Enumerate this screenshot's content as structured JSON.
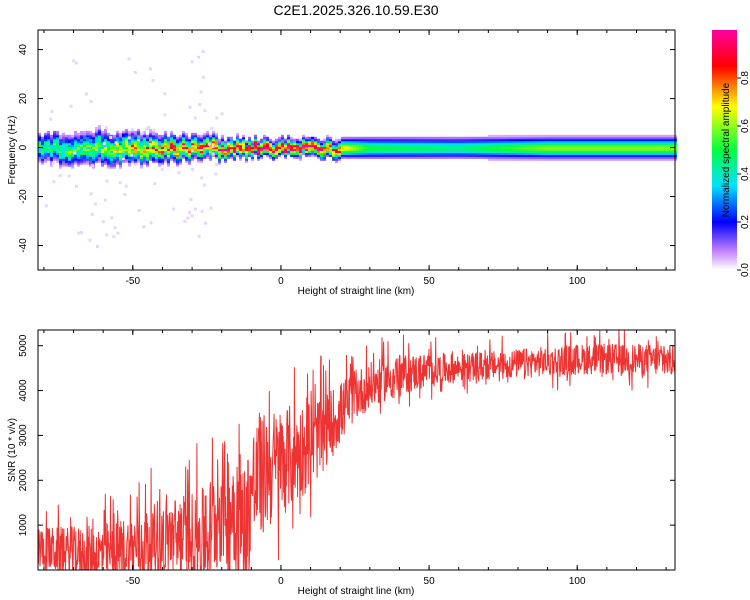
{
  "title": "C2E1.2025.326.10.59.E30",
  "chart_data": [
    {
      "type": "heatmap",
      "xlabel": "Height of straight line (km)",
      "ylabel": "Frequency (Hz)",
      "xlim": [
        -82,
        133
      ],
      "ylim": [
        -50,
        48
      ],
      "xticks": [
        -50,
        0,
        50,
        100
      ],
      "yticks": [
        -40,
        -20,
        0,
        20,
        40
      ],
      "xtick_labels": [
        "-50",
        "0",
        "50",
        "100"
      ],
      "ytick_labels": [
        "-40",
        "-20",
        "0",
        "20",
        "40"
      ],
      "colorbar": {
        "label": "Normalized spectral amplitude",
        "range": [
          0,
          1
        ],
        "ticks": [
          0.0,
          0.2,
          0.4,
          0.6,
          0.8
        ],
        "tick_labels": [
          "0.0",
          "0.2",
          "0.4",
          "0.6",
          "0.8"
        ],
        "colors": [
          "#ffffff",
          "#c080ff",
          "#0000ff",
          "#00e0ff",
          "#00ff40",
          "#ffff00",
          "#ff0000",
          "#ff00a0"
        ]
      },
      "band": {
        "center_hz": 0,
        "description": "Spectral energy concentrated near 0 Hz across all heights",
        "profile": [
          {
            "x": -82,
            "half_width_hz": 5,
            "peak": 0.45
          },
          {
            "x": -60,
            "half_width_hz": 6,
            "peak": 0.55
          },
          {
            "x": -45,
            "half_width_hz": 5,
            "peak": 0.75
          },
          {
            "x": -25,
            "half_width_hz": 4,
            "peak": 0.8
          },
          {
            "x": -10,
            "half_width_hz": 3,
            "peak": 0.95
          },
          {
            "x": 0,
            "half_width_hz": 3,
            "peak": 0.95
          },
          {
            "x": 10,
            "half_width_hz": 3,
            "peak": 0.95
          },
          {
            "x": 30,
            "half_width_hz": 4,
            "peak": 0.5
          },
          {
            "x": 60,
            "half_width_hz": 4,
            "peak": 0.45
          },
          {
            "x": 90,
            "half_width_hz": 4,
            "peak": 0.6
          },
          {
            "x": 133,
            "half_width_hz": 4,
            "peak": 0.6
          }
        ]
      }
    },
    {
      "type": "line",
      "xlabel": "Height of straight line (km)",
      "ylabel": "SNR (10 * v/v)",
      "xlim": [
        -82,
        133
      ],
      "ylim": [
        0,
        5350
      ],
      "xticks": [
        -50,
        0,
        50,
        100
      ],
      "yticks": [
        1000,
        2000,
        3000,
        4000,
        5000
      ],
      "xtick_labels": [
        "-50",
        "0",
        "50",
        "100"
      ],
      "ytick_labels": [
        "1000",
        "2000",
        "3000",
        "4000",
        "5000"
      ],
      "color": "#ee3333",
      "series": [
        {
          "name": "SNR",
          "x": [
            -82,
            -75,
            -70,
            -65,
            -60,
            -55,
            -50,
            -45,
            -40,
            -35,
            -30,
            -25,
            -20,
            -15,
            -12,
            -10,
            -5,
            0,
            5,
            10,
            15,
            20,
            25,
            30,
            35,
            40,
            50,
            60,
            70,
            80,
            90,
            100,
            110,
            120,
            133
          ],
          "y": [
            500,
            420,
            380,
            350,
            360,
            400,
            500,
            600,
            700,
            750,
            800,
            700,
            1500,
            1400,
            900,
            1800,
            2200,
            2400,
            2600,
            2800,
            3100,
            3500,
            3900,
            4100,
            4250,
            4350,
            4450,
            4500,
            4550,
            4600,
            4650,
            4700,
            4700,
            4700,
            4650
          ]
        }
      ],
      "noise_amplitude": [
        {
          "x": -82,
          "amp": 600
        },
        {
          "x": -30,
          "amp": 1200
        },
        {
          "x": -15,
          "amp": 2000
        },
        {
          "x": 5,
          "amp": 1400
        },
        {
          "x": 25,
          "amp": 700
        },
        {
          "x": 60,
          "amp": 400
        },
        {
          "x": 133,
          "amp": 450
        }
      ]
    }
  ]
}
